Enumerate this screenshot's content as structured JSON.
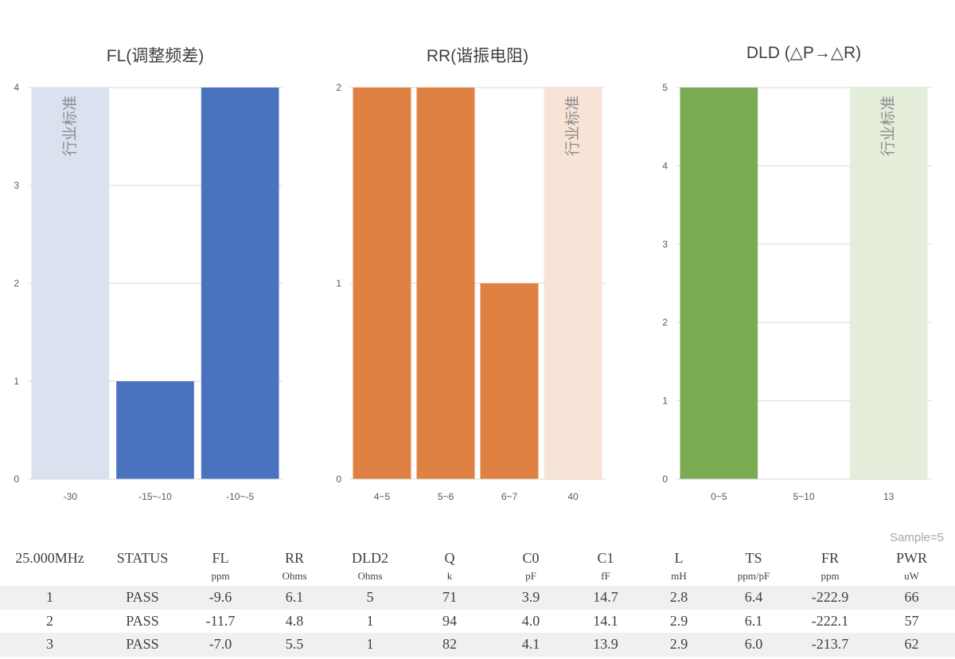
{
  "chart_data": [
    {
      "type": "bar",
      "title": "FL(调整频差)",
      "categories": [
        "-30",
        "-15~-10",
        "-10~-5"
      ],
      "values": [
        4,
        1,
        4
      ],
      "band_category": "-30",
      "band_label": "行业标准",
      "ylim": [
        0,
        4
      ],
      "yticks": [
        "0",
        "1",
        "2",
        "3",
        "4"
      ],
      "grid": true,
      "bar_color": "#4a72be",
      "band_color": "#dae2f0"
    },
    {
      "type": "bar",
      "title": "RR(谐振电阻)",
      "categories": [
        "4~5",
        "5~6",
        "6~7",
        "40"
      ],
      "values": [
        2,
        2,
        1,
        2
      ],
      "band_category": "40",
      "band_label": "行业标准",
      "ylim": [
        0,
        2
      ],
      "yticks": [
        "0",
        "1",
        "2"
      ],
      "grid": true,
      "bar_color": "#df8143",
      "band_color": "#f8e4d6"
    },
    {
      "type": "bar",
      "title": "DLD (△P→△R)",
      "categories": [
        "0~5",
        "5~10",
        "13"
      ],
      "values": [
        5,
        0,
        5
      ],
      "band_category": "13",
      "band_label": "行业标准",
      "ylim": [
        0,
        5
      ],
      "yticks": [
        "0",
        "1",
        "2",
        "3",
        "4",
        "5"
      ],
      "grid": true,
      "bar_color": "#7bab52",
      "band_color": "#e4eedb"
    }
  ],
  "sample_label": "Sample=5",
  "table": {
    "headers": [
      "25.000MHz",
      "STATUS",
      "FL",
      "RR",
      "DLD2",
      "Q",
      "C0",
      "C1",
      "L",
      "TS",
      "FR",
      "PWR"
    ],
    "units": [
      "",
      "",
      "ppm",
      "Ohms",
      "Ohms",
      "k",
      "pF",
      "fF",
      "mH",
      "ppm/pF",
      "ppm",
      "uW"
    ],
    "rows": [
      [
        "1",
        "PASS",
        "-9.6",
        "6.1",
        "5",
        "71",
        "3.9",
        "14.7",
        "2.8",
        "6.4",
        "-222.9",
        "66"
      ],
      [
        "2",
        "PASS",
        "-11.7",
        "4.8",
        "1",
        "94",
        "4.0",
        "14.1",
        "2.9",
        "6.1",
        "-222.1",
        "57"
      ],
      [
        "3",
        "PASS",
        "-7.0",
        "5.5",
        "1",
        "82",
        "4.1",
        "13.9",
        "2.9",
        "6.0",
        "-213.7",
        "62"
      ]
    ]
  }
}
